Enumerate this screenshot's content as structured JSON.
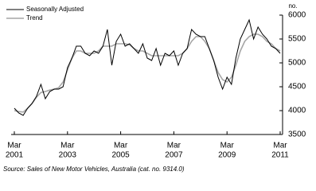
{
  "chart_data": {
    "type": "line",
    "y_label": "no.",
    "source": "Source: Sales of New Motor Vehicles, Australia (cat. no. 9314.0)",
    "x": [
      "2001-03",
      "2001-05",
      "2001-07",
      "2001-09",
      "2001-11",
      "2002-01",
      "2002-03",
      "2002-05",
      "2002-07",
      "2002-09",
      "2002-11",
      "2003-01",
      "2003-03",
      "2003-05",
      "2003-07",
      "2003-09",
      "2003-11",
      "2004-01",
      "2004-03",
      "2004-05",
      "2004-07",
      "2004-09",
      "2004-11",
      "2005-01",
      "2005-03",
      "2005-05",
      "2005-07",
      "2005-09",
      "2005-11",
      "2006-01",
      "2006-03",
      "2006-05",
      "2006-07",
      "2006-09",
      "2006-11",
      "2007-01",
      "2007-03",
      "2007-05",
      "2007-07",
      "2007-09",
      "2007-11",
      "2008-01",
      "2008-03",
      "2008-05",
      "2008-07",
      "2008-09",
      "2008-11",
      "2009-01",
      "2009-03",
      "2009-05",
      "2009-07",
      "2009-09",
      "2009-11",
      "2010-01",
      "2010-03",
      "2010-05",
      "2010-07",
      "2010-09",
      "2010-11",
      "2011-01",
      "2011-03"
    ],
    "series": [
      {
        "name": "Seasonally Adjusted",
        "color": "#000000",
        "values": [
          4050,
          3950,
          3900,
          4050,
          4150,
          4300,
          4550,
          4250,
          4400,
          4450,
          4450,
          4500,
          4900,
          5100,
          5350,
          5350,
          5200,
          5150,
          5250,
          5200,
          5350,
          5700,
          4950,
          5450,
          5600,
          5350,
          5400,
          5300,
          5200,
          5400,
          5100,
          5050,
          5300,
          4950,
          5200,
          5150,
          5250,
          4950,
          5200,
          5300,
          5700,
          5600,
          5550,
          5550,
          5300,
          5050,
          4700,
          4450,
          4700,
          4550,
          5100,
          5500,
          5700,
          5900,
          5500,
          5750,
          5600,
          5500,
          5350,
          5300,
          5200
        ]
      },
      {
        "name": "Trend",
        "color": "#a6a6a6",
        "values": [
          4000,
          3980,
          3970,
          4050,
          4150,
          4280,
          4380,
          4400,
          4430,
          4450,
          4480,
          4600,
          4850,
          5100,
          5250,
          5250,
          5200,
          5200,
          5200,
          5250,
          5350,
          5350,
          5350,
          5400,
          5400,
          5400,
          5380,
          5300,
          5250,
          5250,
          5200,
          5150,
          5150,
          5150,
          5150,
          5150,
          5150,
          5150,
          5200,
          5300,
          5450,
          5550,
          5550,
          5450,
          5300,
          5050,
          4800,
          4650,
          4600,
          4700,
          4950,
          5250,
          5450,
          5550,
          5600,
          5600,
          5550,
          5450,
          5400,
          5300,
          5250
        ]
      }
    ],
    "ylim": [
      3500,
      6000
    ],
    "yticks": [
      3500,
      4000,
      4500,
      5000,
      5500,
      6000
    ],
    "xticks": [
      {
        "value": "2001-03",
        "label": [
          "Mar",
          "2001"
        ]
      },
      {
        "value": "2003-03",
        "label": [
          "Mar",
          "2003"
        ]
      },
      {
        "value": "2005-03",
        "label": [
          "Mar",
          "2005"
        ]
      },
      {
        "value": "2007-03",
        "label": [
          "Mar",
          "2007"
        ]
      },
      {
        "value": "2009-03",
        "label": [
          "Mar",
          "2009"
        ]
      },
      {
        "value": "2011-03",
        "label": [
          "Mar",
          "2011"
        ]
      }
    ],
    "legend": "top-left"
  }
}
